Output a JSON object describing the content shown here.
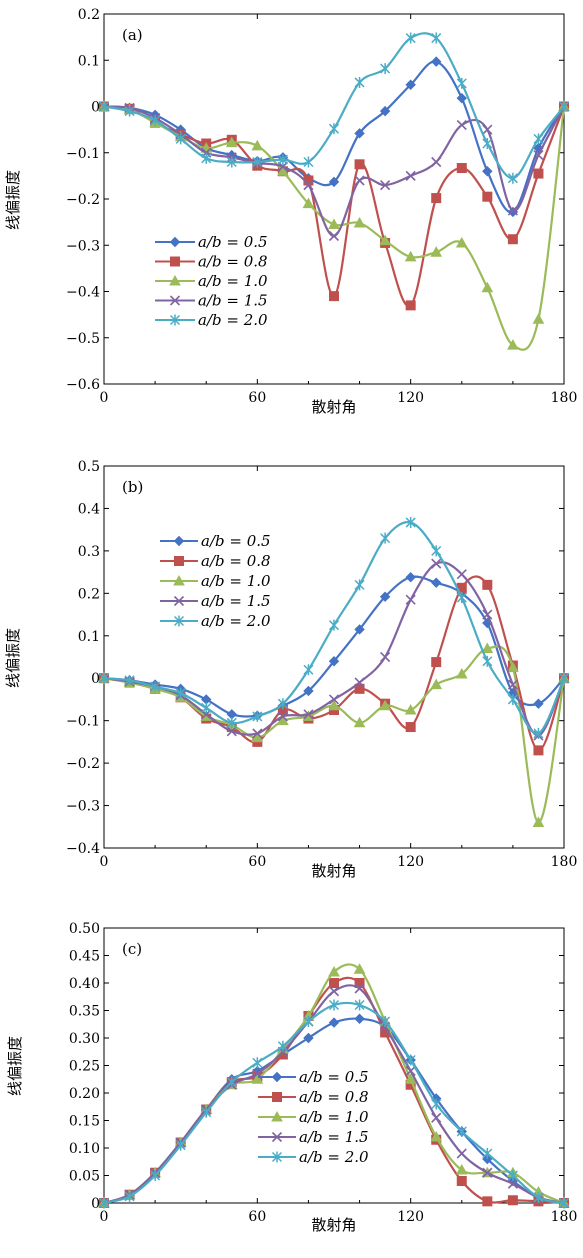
{
  "chart_data": [
    {
      "type": "line",
      "panel_label": "(a)",
      "xlabel": "散射角",
      "ylabel": "线偏振度",
      "xlim": [
        0,
        180
      ],
      "ylim": [
        -0.6,
        0.2
      ],
      "xticks": [
        0,
        60,
        120,
        180
      ],
      "xtick_labels": [
        "0",
        "60",
        "120",
        "180"
      ],
      "yticks": [
        -0.6,
        -0.5,
        -0.4,
        -0.3,
        -0.2,
        -0.1,
        0,
        0.1,
        0.2
      ],
      "ytick_labels": [
        "−0.6",
        "−0.5",
        "−0.4",
        "−0.3",
        "−0.2",
        "−0.1",
        "0",
        "0.1",
        "0.2"
      ],
      "legend_position": "lower-left",
      "x": [
        0,
        10,
        20,
        30,
        40,
        50,
        60,
        70,
        80,
        90,
        100,
        110,
        120,
        130,
        140,
        150,
        160,
        170,
        180
      ],
      "series": [
        {
          "name": "a/b = 0.5",
          "color": "#4472C4",
          "marker": "diamond",
          "values": [
            0,
            -0.003,
            -0.018,
            -0.05,
            -0.09,
            -0.105,
            -0.118,
            -0.11,
            -0.155,
            -0.163,
            -0.058,
            -0.01,
            0.047,
            0.097,
            0.018,
            -0.14,
            -0.228,
            -0.09,
            0
          ]
        },
        {
          "name": "a/b = 0.8",
          "color": "#C0504D",
          "marker": "square",
          "values": [
            0,
            -0.005,
            -0.035,
            -0.06,
            -0.08,
            -0.072,
            -0.128,
            -0.14,
            -0.16,
            -0.41,
            -0.125,
            -0.295,
            -0.43,
            -0.198,
            -0.133,
            -0.195,
            -0.287,
            -0.145,
            0
          ]
        },
        {
          "name": "a/b = 1.0",
          "color": "#9BBB59",
          "marker": "triangle",
          "values": [
            0,
            -0.007,
            -0.035,
            -0.065,
            -0.09,
            -0.078,
            -0.085,
            -0.14,
            -0.21,
            -0.255,
            -0.252,
            -0.29,
            -0.325,
            -0.315,
            -0.295,
            -0.392,
            -0.516,
            -0.46,
            0
          ]
        },
        {
          "name": "a/b = 1.5",
          "color": "#8064A2",
          "marker": "x",
          "values": [
            0,
            -0.003,
            -0.025,
            -0.06,
            -0.1,
            -0.11,
            -0.122,
            -0.13,
            -0.17,
            -0.28,
            -0.16,
            -0.17,
            -0.15,
            -0.12,
            -0.04,
            -0.05,
            -0.225,
            -0.105,
            0
          ]
        },
        {
          "name": "a/b = 2.0",
          "color": "#4BACC6",
          "marker": "asterisk",
          "values": [
            0,
            -0.01,
            -0.03,
            -0.07,
            -0.112,
            -0.12,
            -0.12,
            -0.115,
            -0.12,
            -0.048,
            0.052,
            0.082,
            0.148,
            0.148,
            0.05,
            -0.08,
            -0.155,
            -0.07,
            0
          ]
        }
      ]
    },
    {
      "type": "line",
      "panel_label": "(b)",
      "xlabel": "散射角",
      "ylabel": "线偏振度",
      "xlim": [
        0,
        180
      ],
      "ylim": [
        -0.4,
        0.5
      ],
      "xticks": [
        0,
        60,
        120,
        180
      ],
      "xtick_labels": [
        "0",
        "60",
        "120",
        "180"
      ],
      "yticks": [
        -0.4,
        -0.3,
        -0.2,
        -0.1,
        0,
        0.1,
        0.2,
        0.3,
        0.4,
        0.5
      ],
      "ytick_labels": [
        "−0.4",
        "−0.3",
        "−0.2",
        "−0.1",
        "0",
        "0.1",
        "0.2",
        "0.3",
        "0.4",
        "0.5"
      ],
      "legend_position": "upper-left",
      "x": [
        0,
        10,
        20,
        30,
        40,
        50,
        60,
        70,
        80,
        90,
        100,
        110,
        120,
        130,
        140,
        150,
        160,
        170,
        180
      ],
      "series": [
        {
          "name": "a/b = 0.5",
          "color": "#4472C4",
          "marker": "diamond",
          "values": [
            0,
            -0.005,
            -0.015,
            -0.025,
            -0.05,
            -0.085,
            -0.088,
            -0.065,
            -0.03,
            0.04,
            0.115,
            0.192,
            0.238,
            0.225,
            0.2,
            0.13,
            -0.035,
            -0.06,
            0
          ]
        },
        {
          "name": "a/b = 0.8",
          "color": "#C0504D",
          "marker": "square",
          "values": [
            0,
            -0.01,
            -0.025,
            -0.045,
            -0.095,
            -0.115,
            -0.15,
            -0.075,
            -0.095,
            -0.075,
            -0.025,
            -0.06,
            -0.115,
            0.038,
            0.213,
            0.22,
            0.03,
            -0.17,
            0
          ]
        },
        {
          "name": "a/b = 1.0",
          "color": "#9BBB59",
          "marker": "triangle",
          "values": [
            0,
            -0.01,
            -0.025,
            -0.045,
            -0.09,
            -0.11,
            -0.14,
            -0.1,
            -0.09,
            -0.065,
            -0.105,
            -0.065,
            -0.075,
            -0.015,
            0.01,
            0.07,
            0.025,
            -0.34,
            0
          ]
        },
        {
          "name": "a/b = 1.5",
          "color": "#8064A2",
          "marker": "x",
          "values": [
            0,
            -0.008,
            -0.02,
            -0.04,
            -0.085,
            -0.125,
            -0.13,
            -0.09,
            -0.085,
            -0.05,
            -0.01,
            0.05,
            0.185,
            0.27,
            0.245,
            0.15,
            -0.015,
            -0.135,
            0
          ]
        },
        {
          "name": "a/b = 2.0",
          "color": "#4BACC6",
          "marker": "asterisk",
          "values": [
            0,
            -0.005,
            -0.02,
            -0.035,
            -0.07,
            -0.105,
            -0.09,
            -0.06,
            0.02,
            0.125,
            0.22,
            0.33,
            0.367,
            0.3,
            0.19,
            0.04,
            -0.05,
            -0.13,
            0
          ]
        }
      ]
    },
    {
      "type": "line",
      "panel_label": "(c)",
      "xlabel": "散射角",
      "ylabel": "线偏振度",
      "xlim": [
        0,
        180
      ],
      "ylim": [
        0,
        0.5
      ],
      "xticks": [
        0,
        60,
        120,
        180
      ],
      "xtick_labels": [
        "0",
        "60",
        "120",
        "180"
      ],
      "yticks": [
        0,
        0.05,
        0.1,
        0.15,
        0.2,
        0.25,
        0.3,
        0.35,
        0.4,
        0.45,
        0.5
      ],
      "ytick_labels": [
        "0",
        "0.05",
        "0.10",
        "0.15",
        "0.20",
        "0.25",
        "0.30",
        "0.35",
        "0.40",
        "0.45",
        "0.50"
      ],
      "legend_position": "lower-middle",
      "x": [
        0,
        10,
        20,
        30,
        40,
        50,
        60,
        70,
        80,
        90,
        100,
        110,
        120,
        130,
        140,
        150,
        160,
        170,
        180
      ],
      "series": [
        {
          "name": "a/b = 0.5",
          "color": "#4472C4",
          "marker": "diamond",
          "values": [
            0,
            0.015,
            0.055,
            0.11,
            0.17,
            0.225,
            0.24,
            0.27,
            0.3,
            0.328,
            0.335,
            0.32,
            0.26,
            0.19,
            0.13,
            0.08,
            0.04,
            0.01,
            0
          ]
        },
        {
          "name": "a/b = 0.8",
          "color": "#C0504D",
          "marker": "square",
          "values": [
            0,
            0.015,
            0.055,
            0.11,
            0.17,
            0.22,
            0.23,
            0.27,
            0.34,
            0.4,
            0.4,
            0.31,
            0.215,
            0.115,
            0.04,
            0.003,
            0.005,
            0.003,
            0
          ]
        },
        {
          "name": "a/b = 1.0",
          "color": "#9BBB59",
          "marker": "triangle",
          "values": [
            0,
            0.015,
            0.055,
            0.11,
            0.17,
            0.215,
            0.225,
            0.28,
            0.34,
            0.42,
            0.425,
            0.33,
            0.225,
            0.12,
            0.06,
            0.055,
            0.055,
            0.02,
            0
          ]
        },
        {
          "name": "a/b = 1.5",
          "color": "#8064A2",
          "marker": "x",
          "values": [
            0,
            0.015,
            0.055,
            0.11,
            0.17,
            0.215,
            0.235,
            0.275,
            0.33,
            0.385,
            0.39,
            0.32,
            0.24,
            0.155,
            0.09,
            0.055,
            0.035,
            0.01,
            0
          ]
        },
        {
          "name": "a/b = 2.0",
          "color": "#4BACC6",
          "marker": "asterisk",
          "values": [
            0,
            0.012,
            0.05,
            0.105,
            0.165,
            0.22,
            0.255,
            0.285,
            0.33,
            0.36,
            0.36,
            0.33,
            0.26,
            0.18,
            0.13,
            0.09,
            0.05,
            0.01,
            0
          ]
        }
      ]
    }
  ]
}
